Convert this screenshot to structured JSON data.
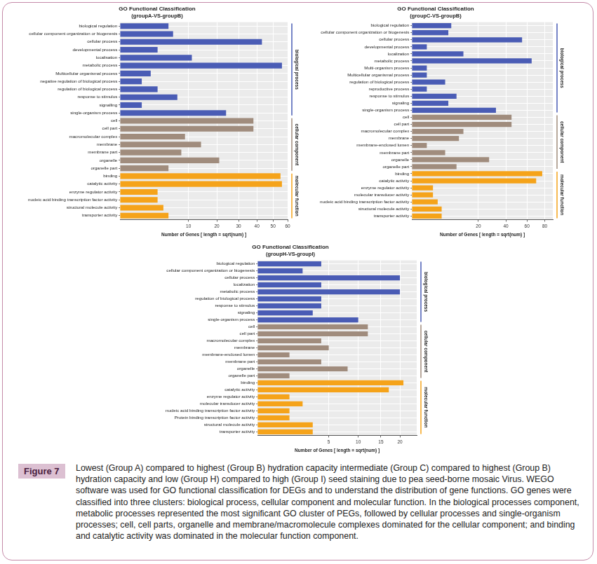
{
  "chart_data": [
    {
      "type": "bar",
      "orientation": "horizontal",
      "title": "GO Functional Classification",
      "subtitle": "(groupA-VS-groupB)",
      "x_label": "Number of Genes [ length = sqrt(num) ]",
      "categories": [
        "biological regulation",
        "cellular component organization or biogenesis",
        "cellular process",
        "developmental process",
        "localisation",
        "metabolic process",
        "Multicellular organismal process",
        "negative regulation of biological process",
        "regulation of biological process",
        "response to stimulus",
        "signalling",
        "single-organism process",
        "cell",
        "cell part",
        "macromolecular complex",
        "membrane",
        "membrane part",
        "organelle",
        "organelle part",
        "binding",
        "catalytic activity",
        "enzyme regulator activity",
        "nucleic acid binding transcription factor activity",
        "structural molecule activity",
        "transporter activity"
      ],
      "series": [
        {
          "name": "biological process",
          "color": "#4a5cb5",
          "values": [
            5,
            6,
            43,
            3,
            11,
            56,
            2,
            1,
            3,
            7,
            1,
            24,
            null,
            null,
            null,
            null,
            null,
            null,
            null,
            null,
            null,
            null,
            null,
            null,
            null
          ]
        },
        {
          "name": "cellular component",
          "color": "#a08c7d",
          "values": [
            null,
            null,
            null,
            null,
            null,
            null,
            null,
            null,
            null,
            null,
            null,
            null,
            38,
            38,
            9,
            14,
            8,
            21,
            5,
            null,
            null,
            null,
            null,
            null,
            null
          ]
        },
        {
          "name": "molecular function",
          "color": "#f5a31a",
          "values": [
            null,
            null,
            null,
            null,
            null,
            null,
            null,
            null,
            null,
            null,
            null,
            null,
            null,
            null,
            null,
            null,
            null,
            null,
            null,
            55,
            56,
            3,
            3,
            4,
            5
          ]
        }
      ],
      "xlim": [
        0,
        60
      ],
      "xticks": [
        10,
        20,
        30,
        40,
        50,
        60
      ],
      "grid": true
    },
    {
      "type": "bar",
      "orientation": "horizontal",
      "title": "GO Functional Classification",
      "subtitle": "(groupC-VS-groupB)",
      "x_label": "Number of Genes [ length = sqrt(num) ]",
      "categories": [
        "biological regulation",
        "cellular component organization or biogenesis",
        "cellular process",
        "developmental process",
        "localization",
        "metabolic process",
        "Multi-organism process",
        "Multicellular organismal process",
        "regulation of biological process",
        "reproductive process",
        "response to stimulus",
        "signaling",
        "single-organism process",
        "cell",
        "cell part",
        "macromolecular complex",
        "membrane",
        "membrane-enclosed lumen",
        "membrane part",
        "organelle",
        "organelle part",
        "binding",
        "catalytic activity",
        "enzyme regulator activity",
        "molecular transducer activity",
        "nucleic acid binding transcription factor activity",
        "structural molecule activity",
        "transporter activity"
      ],
      "series": [
        {
          "name": "biological process",
          "color": "#4a5cb5",
          "values": [
            7,
            6,
            55,
            1,
            12,
            65,
            1,
            1,
            5,
            1,
            9,
            6,
            32,
            null,
            null,
            null,
            null,
            null,
            null,
            null,
            null,
            null,
            null,
            null,
            null,
            null,
            null,
            null
          ]
        },
        {
          "name": "cellular component",
          "color": "#a08c7d",
          "values": [
            null,
            null,
            null,
            null,
            null,
            null,
            null,
            null,
            null,
            null,
            null,
            null,
            null,
            45,
            45,
            12,
            10,
            1,
            5,
            27,
            9,
            null,
            null,
            null,
            null,
            null,
            null,
            null
          ]
        },
        {
          "name": "molecular function",
          "color": "#f5a31a",
          "values": [
            null,
            null,
            null,
            null,
            null,
            null,
            null,
            null,
            null,
            null,
            null,
            null,
            null,
            null,
            null,
            null,
            null,
            null,
            null,
            null,
            null,
            77,
            70,
            2,
            2,
            3,
            4,
            4
          ]
        }
      ],
      "xlim": [
        0,
        90
      ],
      "xticks": [
        20,
        40,
        60,
        80
      ],
      "grid": true
    },
    {
      "type": "bar",
      "orientation": "horizontal",
      "title": "GO Functional Classification",
      "subtitle": "(groupH-VS-groupI)",
      "x_label": "Number of Genes [ length = sqrt(num) ]",
      "categories": [
        "biological regulation",
        "cellular component organization or biogenesis",
        "cellular process",
        "localization",
        "metabolic process",
        "regulation of biological process",
        "response to stimulus",
        "signaling",
        "single-organism process",
        "cell",
        "cell part",
        "macromolecular complex",
        "membrane",
        "membrane-enclosed lumen",
        "membrane part",
        "organelle",
        "organelle part",
        "binding",
        "catalytic activity",
        "enzyme regulator activity",
        "molecular transducer activity",
        "nucleic acid binding transcription factor activity",
        "Protein binding transcription factor activity",
        "structural molecule activity",
        "transporter activity"
      ],
      "series": [
        {
          "name": "biological process",
          "color": "#4a5cb5",
          "values": [
            4,
            2,
            20,
            4,
            20,
            4,
            4,
            3,
            10,
            null,
            null,
            null,
            null,
            null,
            null,
            null,
            null,
            null,
            null,
            null,
            null,
            null,
            null,
            null,
            null
          ]
        },
        {
          "name": "cellular component",
          "color": "#a08c7d",
          "values": [
            null,
            null,
            null,
            null,
            null,
            null,
            null,
            null,
            null,
            12,
            12,
            4,
            5,
            1,
            4,
            8,
            1,
            null,
            null,
            null,
            null,
            null,
            null,
            null,
            null
          ]
        },
        {
          "name": "molecular function",
          "color": "#f5a31a",
          "values": [
            null,
            null,
            null,
            null,
            null,
            null,
            null,
            null,
            null,
            null,
            null,
            null,
            null,
            null,
            null,
            null,
            null,
            21,
            17,
            1,
            2,
            1,
            1,
            3,
            3
          ]
        }
      ],
      "xlim": [
        0,
        25
      ],
      "xticks": [
        5,
        10,
        15,
        20
      ],
      "grid": true
    }
  ],
  "figure": {
    "label": "Figure 7",
    "caption": "Lowest (Group A) compared to highest (Group B) hydration capacity intermediate (Group C) compared to highest (Group B) hydration capacity and low (Group H) compared to high (Group I) seed staining due to pea seed-borne mosaic Virus. WEGO software was used for GO functional classification for DEGs and to understand the distribution of gene functions. GO genes were classified into three clusters: biological process, cellular component and molecular function. In the biological processes component, metabolic processes represented the most significant GO cluster of PEGs, followed by cellular processes and single-organism processes; cell, cell parts, organelle and membrane/macromolecule complexes dominated for the cellular component; and binding and catalytic activity was dominated in the molecular function component."
  }
}
